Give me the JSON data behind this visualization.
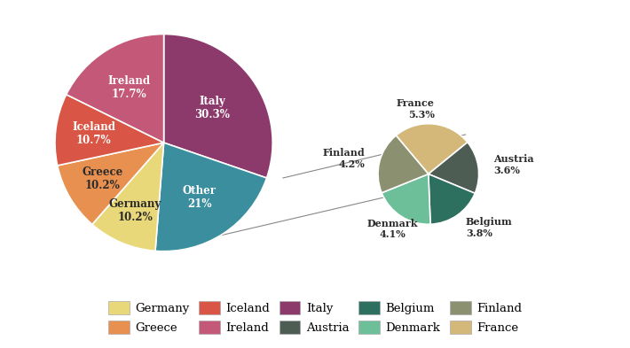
{
  "main_labels": [
    "Italy",
    "Other",
    "Germany",
    "Greece",
    "Iceland",
    "Ireland"
  ],
  "main_values": [
    30.3,
    21.0,
    10.2,
    10.2,
    10.7,
    17.7
  ],
  "main_colors": [
    "#8b3a6b",
    "#3a8e9e",
    "#e8d87a",
    "#e89050",
    "#d95545",
    "#c45878"
  ],
  "sub_labels": [
    "Austria",
    "Belgium",
    "Denmark",
    "Finland",
    "France"
  ],
  "sub_values": [
    3.6,
    3.8,
    4.1,
    4.2,
    5.3
  ],
  "sub_colors": [
    "#4e5d53",
    "#2e7060",
    "#6dbf9a",
    "#8a9070",
    "#d4b87a"
  ],
  "legend_entries": [
    {
      "label": "Germany",
      "color": "#e8d87a"
    },
    {
      "label": "Greece",
      "color": "#e89050"
    },
    {
      "label": "Iceland",
      "color": "#d95545"
    },
    {
      "label": "Ireland",
      "color": "#c45878"
    },
    {
      "label": "Italy",
      "color": "#8b3a6b"
    },
    {
      "label": "Austria",
      "color": "#4e5d53"
    },
    {
      "label": "Belgium",
      "color": "#2e7060"
    },
    {
      "label": "Denmark",
      "color": "#6dbf9a"
    },
    {
      "label": "Finland",
      "color": "#8a9070"
    },
    {
      "label": "France",
      "color": "#d4b87a"
    }
  ],
  "background_color": "#ffffff",
  "label_fontsize": 8.5,
  "legend_fontsize": 9.5,
  "main_label_colors": {
    "Italy": "white",
    "Other": "white",
    "Germany": "#2a2a2a",
    "Greece": "#2a2a2a",
    "Iceland": "white",
    "Ireland": "white"
  },
  "main_label_r": {
    "Italy": 0.55,
    "Other": 0.6,
    "Germany": 0.68,
    "Greece": 0.65,
    "Iceland": 0.65,
    "Ireland": 0.6
  }
}
